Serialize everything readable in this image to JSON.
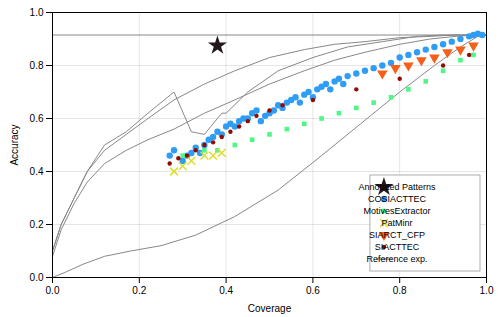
{
  "chart_data": {
    "type": "scatter",
    "xlabel": "Coverage",
    "ylabel": "Accuracy",
    "xlim": [
      0.0,
      1.0
    ],
    "ylim": [
      0.0,
      1.0
    ],
    "xticks": [
      {
        "value": 0.0,
        "label": "0.0"
      },
      0.2,
      0.4,
      0.6,
      0.8,
      {
        "value": 1.0,
        "label": "1.0"
      }
    ],
    "yticks": [
      {
        "value": 0.0,
        "label": "0.0"
      },
      0.2,
      0.4,
      0.6,
      0.8,
      {
        "value": 1.0,
        "label": "1.0"
      }
    ],
    "grid": true,
    "legend": "lower right",
    "series": [
      {
        "name": "Annotated Patterns",
        "type": "scatter",
        "marker": "star",
        "values": [
          [
            0.38,
            0.875
          ]
        ]
      },
      {
        "name": "COSIACTTEC",
        "type": "scatter",
        "marker": "circle",
        "values": [
          [
            0.27,
            0.46
          ],
          [
            0.28,
            0.48
          ],
          [
            0.3,
            0.44
          ],
          [
            0.31,
            0.46
          ],
          [
            0.32,
            0.47
          ],
          [
            0.33,
            0.49
          ],
          [
            0.34,
            0.47
          ],
          [
            0.35,
            0.5
          ],
          [
            0.36,
            0.52
          ],
          [
            0.37,
            0.53
          ],
          [
            0.38,
            0.55
          ],
          [
            0.39,
            0.54
          ],
          [
            0.4,
            0.57
          ],
          [
            0.41,
            0.58
          ],
          [
            0.42,
            0.57
          ],
          [
            0.43,
            0.59
          ],
          [
            0.44,
            0.6
          ],
          [
            0.45,
            0.6
          ],
          [
            0.46,
            0.62
          ],
          [
            0.47,
            0.63
          ],
          [
            0.48,
            0.59
          ],
          [
            0.49,
            0.61
          ],
          [
            0.5,
            0.62
          ],
          [
            0.51,
            0.63
          ],
          [
            0.52,
            0.65
          ],
          [
            0.53,
            0.64
          ],
          [
            0.54,
            0.66
          ],
          [
            0.55,
            0.67
          ],
          [
            0.56,
            0.68
          ],
          [
            0.57,
            0.66
          ],
          [
            0.58,
            0.69
          ],
          [
            0.59,
            0.7
          ],
          [
            0.6,
            0.68
          ],
          [
            0.61,
            0.71
          ],
          [
            0.62,
            0.72
          ],
          [
            0.63,
            0.73
          ],
          [
            0.64,
            0.71
          ],
          [
            0.65,
            0.74
          ],
          [
            0.66,
            0.75
          ],
          [
            0.67,
            0.73
          ],
          [
            0.68,
            0.76
          ],
          [
            0.7,
            0.77
          ],
          [
            0.72,
            0.78
          ],
          [
            0.74,
            0.79
          ],
          [
            0.76,
            0.8
          ],
          [
            0.78,
            0.81
          ],
          [
            0.8,
            0.83
          ],
          [
            0.82,
            0.84
          ],
          [
            0.84,
            0.85
          ],
          [
            0.86,
            0.86
          ],
          [
            0.88,
            0.87
          ],
          [
            0.9,
            0.88
          ],
          [
            0.92,
            0.89
          ],
          [
            0.94,
            0.9
          ],
          [
            0.96,
            0.91
          ],
          [
            0.97,
            0.915
          ],
          [
            0.98,
            0.92
          ],
          [
            0.99,
            0.915
          ]
        ]
      },
      {
        "name": "MotivesExtractor",
        "type": "scatter",
        "marker": "square",
        "values": [
          [
            0.3,
            0.46
          ],
          [
            0.35,
            0.48
          ],
          [
            0.38,
            0.48
          ],
          [
            0.42,
            0.5
          ],
          [
            0.46,
            0.52
          ],
          [
            0.5,
            0.54
          ],
          [
            0.54,
            0.56
          ],
          [
            0.58,
            0.58
          ],
          [
            0.62,
            0.6
          ],
          [
            0.66,
            0.62
          ],
          [
            0.7,
            0.64
          ],
          [
            0.74,
            0.66
          ],
          [
            0.78,
            0.68
          ],
          [
            0.82,
            0.71
          ],
          [
            0.86,
            0.74
          ],
          [
            0.9,
            0.78
          ],
          [
            0.94,
            0.82
          ],
          [
            0.97,
            0.84
          ]
        ]
      },
      {
        "name": "PatMinr",
        "type": "scatter",
        "marker": "x",
        "values": [
          [
            0.28,
            0.4
          ],
          [
            0.3,
            0.42
          ],
          [
            0.32,
            0.44
          ],
          [
            0.35,
            0.46
          ],
          [
            0.37,
            0.46
          ],
          [
            0.39,
            0.47
          ]
        ]
      },
      {
        "name": "SIARCT_CFP",
        "type": "scatter",
        "marker": "triangle_down",
        "values": [
          [
            0.76,
            0.77
          ],
          [
            0.79,
            0.79
          ],
          [
            0.82,
            0.8
          ],
          [
            0.85,
            0.82
          ],
          [
            0.88,
            0.83
          ],
          [
            0.91,
            0.85
          ],
          [
            0.94,
            0.86
          ],
          [
            0.97,
            0.875
          ]
        ]
      },
      {
        "name": "SIACTTEC",
        "type": "scatter",
        "marker": "dot",
        "values": [
          [
            0.27,
            0.43
          ],
          [
            0.29,
            0.45
          ],
          [
            0.31,
            0.46
          ],
          [
            0.33,
            0.48
          ],
          [
            0.35,
            0.5
          ],
          [
            0.37,
            0.51
          ],
          [
            0.39,
            0.53
          ],
          [
            0.41,
            0.55
          ],
          [
            0.43,
            0.57
          ],
          [
            0.45,
            0.59
          ],
          [
            0.47,
            0.61
          ],
          [
            0.5,
            0.63
          ],
          [
            0.53,
            0.65
          ],
          [
            0.6,
            0.67
          ],
          [
            0.7,
            0.71
          ],
          [
            0.8,
            0.75
          ],
          [
            0.9,
            0.8
          ],
          [
            0.96,
            0.84
          ]
        ]
      },
      {
        "name": "Reference exp.",
        "type": "line",
        "color": "#888888",
        "hline_y": 0.915,
        "curves": [
          {
            "x": [
              0.0,
              0.02,
              0.05,
              0.08,
              0.12,
              0.17,
              0.22,
              0.28,
              0.35,
              0.42,
              0.5,
              0.58,
              0.65,
              0.72,
              0.8,
              0.87,
              0.93,
              0.97,
              1.0
            ],
            "y": [
              0.08,
              0.18,
              0.28,
              0.36,
              0.43,
              0.48,
              0.52,
              0.56,
              0.62,
              0.67,
              0.73,
              0.78,
              0.82,
              0.85,
              0.88,
              0.9,
              0.91,
              0.915,
              0.915
            ]
          },
          {
            "x": [
              0.0,
              0.02,
              0.05,
              0.08,
              0.12,
              0.17,
              0.22,
              0.28,
              0.35,
              0.42,
              0.5,
              0.58,
              0.65,
              0.72,
              0.8,
              0.87,
              0.93,
              0.97,
              1.0
            ],
            "y": [
              0.1,
              0.2,
              0.3,
              0.4,
              0.48,
              0.54,
              0.6,
              0.67,
              0.73,
              0.78,
              0.83,
              0.86,
              0.88,
              0.89,
              0.905,
              0.91,
              0.915,
              0.915,
              0.915
            ]
          },
          {
            "x": [
              0.0,
              0.02,
              0.05,
              0.08,
              0.12,
              0.17,
              0.22,
              0.28,
              0.32,
              0.35,
              0.36,
              0.38,
              0.39,
              0.4,
              0.45,
              0.52,
              0.6,
              0.68,
              0.76,
              0.84,
              0.9,
              0.95,
              1.0
            ],
            "y": [
              0.1,
              0.2,
              0.3,
              0.4,
              0.5,
              0.55,
              0.62,
              0.7,
              0.55,
              0.54,
              0.56,
              0.6,
              0.62,
              0.62,
              0.7,
              0.78,
              0.83,
              0.87,
              0.89,
              0.91,
              0.915,
              0.915,
              0.915
            ]
          },
          {
            "x": [
              0.0,
              0.03,
              0.07,
              0.12,
              0.18,
              0.25,
              0.33,
              0.42,
              0.52,
              0.62,
              0.71,
              0.8,
              0.88,
              0.94,
              0.98,
              1.0
            ],
            "y": [
              0.0,
              0.02,
              0.05,
              0.08,
              0.1,
              0.12,
              0.16,
              0.23,
              0.33,
              0.46,
              0.58,
              0.7,
              0.8,
              0.87,
              0.91,
              0.915
            ]
          }
        ]
      }
    ]
  }
}
